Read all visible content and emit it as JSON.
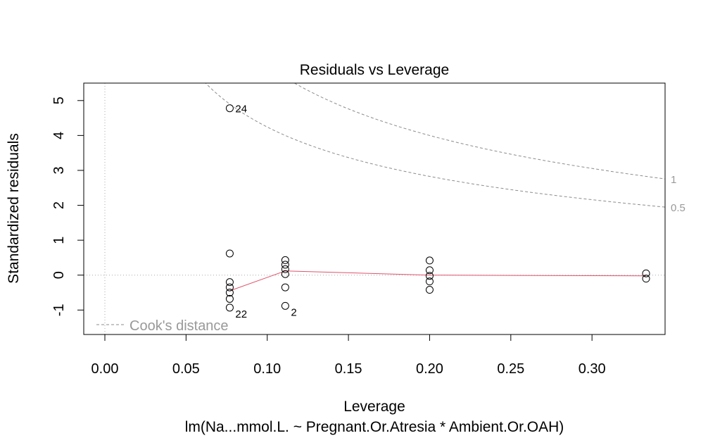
{
  "chart_data": {
    "type": "scatter",
    "title": "Residuals vs Leverage",
    "subtitle": "lm(Na...mmol.L. ~ Pregnant.Or.Atresia * Ambient.Or.OAH)",
    "xlabel": "Leverage",
    "ylabel": "Standardized residuals",
    "xlim": [
      -0.013,
      0.345
    ],
    "ylim": [
      -1.7,
      5.5
    ],
    "x_ticks": [
      "0.00",
      "0.05",
      "0.10",
      "0.15",
      "0.20",
      "0.25",
      "0.30"
    ],
    "x_tick_values": [
      0,
      0.05,
      0.1,
      0.15,
      0.2,
      0.25,
      0.3
    ],
    "y_ticks": [
      "-1",
      "0",
      "1",
      "2",
      "3",
      "4",
      "5"
    ],
    "y_tick_values": [
      -1,
      0,
      1,
      2,
      3,
      4,
      5
    ],
    "points": [
      {
        "x": 0.0769,
        "y": 4.78,
        "label": "24"
      },
      {
        "x": 0.0769,
        "y": 0.62
      },
      {
        "x": 0.0769,
        "y": -0.2
      },
      {
        "x": 0.0769,
        "y": -0.35
      },
      {
        "x": 0.0769,
        "y": -0.5
      },
      {
        "x": 0.0769,
        "y": -0.68
      },
      {
        "x": 0.0769,
        "y": -0.93,
        "label": "22"
      },
      {
        "x": 0.1111,
        "y": 0.43
      },
      {
        "x": 0.1111,
        "y": 0.3
      },
      {
        "x": 0.1111,
        "y": 0.17
      },
      {
        "x": 0.1111,
        "y": 0.03
      },
      {
        "x": 0.1111,
        "y": -0.35
      },
      {
        "x": 0.1111,
        "y": -0.88,
        "label": "2"
      },
      {
        "x": 0.2,
        "y": 0.42
      },
      {
        "x": 0.2,
        "y": 0.14
      },
      {
        "x": 0.2,
        "y": -0.02
      },
      {
        "x": 0.2,
        "y": -0.18
      },
      {
        "x": 0.2,
        "y": -0.42
      },
      {
        "x": 0.3333,
        "y": 0.05
      },
      {
        "x": 0.3333,
        "y": -0.1
      }
    ],
    "smooth_line": [
      {
        "x": 0.0769,
        "y": -0.45
      },
      {
        "x": 0.1111,
        "y": 0.12
      },
      {
        "x": 0.2,
        "y": 0.0
      },
      {
        "x": 0.3333,
        "y": -0.02
      }
    ],
    "cooks_contours": [
      {
        "level": 0.5,
        "label": "0.5"
      },
      {
        "level": 1,
        "label": "1"
      }
    ],
    "n_params": 4,
    "legend": {
      "label": "Cook's distance",
      "placement": "bottom-left"
    },
    "colors": {
      "points": "#000000",
      "smooth": "#DF536B",
      "cooks": "#8c8c8c",
      "reference": "#aaaaaa",
      "legend_text": "#999999"
    }
  }
}
